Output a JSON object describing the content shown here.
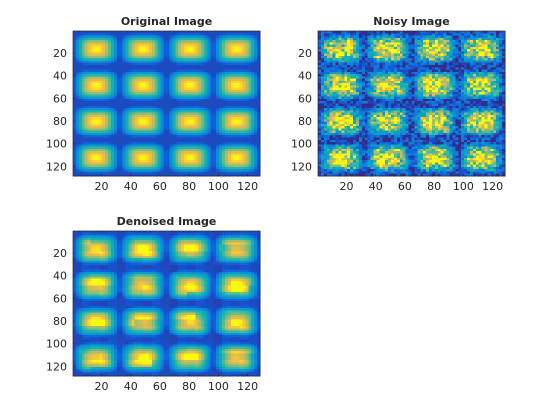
{
  "chart_data": [
    {
      "type": "heatmap",
      "title": "Original Image",
      "image": "smooth 4x4 grid of bright rounded blobs on a dark blue background (no noise)",
      "xlim": [
        0.5,
        128.5
      ],
      "ylim": [
        0.5,
        128.5
      ],
      "xticks": [
        20,
        40,
        60,
        80,
        100,
        120
      ],
      "yticks": [
        20,
        40,
        60,
        80,
        100,
        120
      ],
      "xticklabels": [
        "20",
        "40",
        "60",
        "80",
        "100",
        "120"
      ],
      "yticklabels": [
        "20",
        "40",
        "60",
        "80",
        "100",
        "120"
      ],
      "y_reversed": true,
      "colormap": "parula",
      "blob_grid": [
        4,
        4
      ],
      "noise": 0
    },
    {
      "type": "heatmap",
      "title": "Noisy Image",
      "image": "same 4x4 blob grid with strong pixel-level noise",
      "xlim": [
        0.5,
        128.5
      ],
      "ylim": [
        0.5,
        128.5
      ],
      "xticks": [
        20,
        40,
        60,
        80,
        100,
        120
      ],
      "yticks": [
        20,
        40,
        60,
        80,
        100,
        120
      ],
      "xticklabels": [
        "20",
        "40",
        "60",
        "80",
        "100",
        "120"
      ],
      "yticklabels": [
        "20",
        "40",
        "60",
        "80",
        "100",
        "120"
      ],
      "y_reversed": true,
      "colormap": "parula",
      "blob_grid": [
        4,
        4
      ],
      "noise": 0.45
    },
    {
      "type": "heatmap",
      "title": "Denoised Image",
      "image": "4x4 blob grid after denoising: blocky, lumpy blobs with mild residual variation",
      "xlim": [
        0.5,
        128.5
      ],
      "ylim": [
        0.5,
        128.5
      ],
      "xticks": [
        20,
        40,
        60,
        80,
        100,
        120
      ],
      "yticks": [
        20,
        40,
        60,
        80,
        100,
        120
      ],
      "xticklabels": [
        "20",
        "40",
        "60",
        "80",
        "100",
        "120"
      ],
      "yticklabels": [
        "20",
        "40",
        "60",
        "80",
        "100",
        "120"
      ],
      "y_reversed": true,
      "colormap": "parula",
      "blob_grid": [
        4,
        4
      ],
      "noise": 0.12
    }
  ]
}
